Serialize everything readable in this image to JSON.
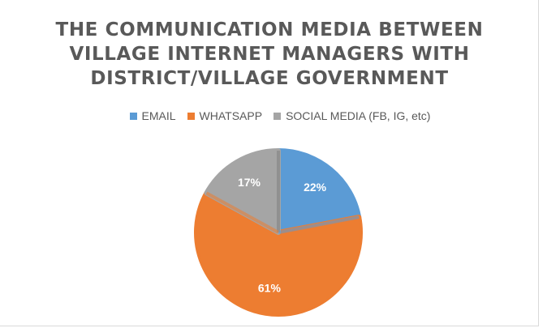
{
  "chart_data": {
    "type": "pie",
    "title_lines": [
      "THE COMMUNICATION MEDIA BETWEEN",
      "VILLAGE INTERNET MANAGERS WITH",
      "DISTRICT/VILLAGE GOVERNMENT"
    ],
    "slices": [
      {
        "label": "EMAIL",
        "value": 22,
        "display": "22%",
        "color": "#5b9bd5"
      },
      {
        "label": "WHATSAPP",
        "value": 61,
        "display": "61%",
        "color": "#ed7d31"
      },
      {
        "label": "SOCIAL MEDIA (FB, IG, etc)",
        "value": 17,
        "display": "17%",
        "color": "#a5a5a5"
      }
    ],
    "legend_position": "top",
    "start_angle": "12 o'clock",
    "direction": "clockwise"
  }
}
